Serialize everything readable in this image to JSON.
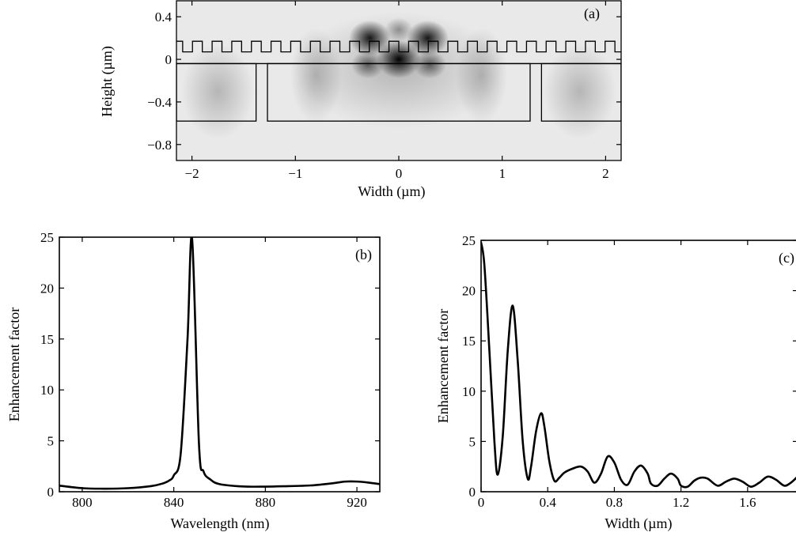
{
  "chart_data": [
    {
      "id": "a",
      "type": "heatmap",
      "panel_label": "(a)",
      "xlabel": "Width (µm)",
      "ylabel": "Height (µm)",
      "xlim": [
        -2.15,
        2.15
      ],
      "ylim": [
        -0.95,
        0.55
      ],
      "xticks": [
        -2,
        -1,
        0,
        1,
        2
      ],
      "xtick_labels": [
        "−2",
        "−1",
        "0",
        "1",
        "2"
      ],
      "yticks": [
        0.4,
        0,
        -0.4,
        -0.8
      ],
      "ytick_labels": [
        "0.4",
        "0",
        "−0.4",
        "−0.8"
      ],
      "colormap": "grayscale",
      "hotspots": [
        {
          "x": 0.0,
          "y": 0.0,
          "intensity": 1.0
        },
        {
          "x": -0.28,
          "y": 0.2,
          "intensity": 0.9
        },
        {
          "x": 0.28,
          "y": 0.2,
          "intensity": 0.9
        },
        {
          "x": -0.3,
          "y": -0.05,
          "intensity": 0.55
        },
        {
          "x": 0.3,
          "y": -0.05,
          "intensity": 0.55
        },
        {
          "x": 0.0,
          "y": 0.28,
          "intensity": 0.35
        }
      ],
      "structure": {
        "grating_top": 0.17,
        "grating_bottom": 0.07,
        "grating_period": 0.19,
        "grating_width": [
          -2.15,
          2.15
        ],
        "slab_top": -0.04,
        "block_bottom": -0.58,
        "blocks": [
          [
            -2.15,
            -1.38
          ],
          [
            -1.27,
            1.27
          ],
          [
            1.38,
            2.15
          ]
        ]
      }
    },
    {
      "id": "b",
      "type": "line",
      "panel_label": "(b)",
      "xlabel": "Wavelength (nm)",
      "ylabel": "Enhancement factor",
      "xlim": [
        790,
        930
      ],
      "ylim": [
        0,
        25
      ],
      "xticks": [
        800,
        840,
        880,
        920
      ],
      "yticks": [
        0,
        5,
        10,
        15,
        20,
        25
      ],
      "x": [
        790,
        800,
        810,
        820,
        830,
        835,
        838,
        840,
        843,
        846,
        848,
        851,
        853,
        856,
        860,
        870,
        880,
        890,
        900,
        910,
        915,
        920,
        925,
        930
      ],
      "y": [
        0.6,
        0.35,
        0.3,
        0.35,
        0.55,
        0.8,
        1.1,
        1.6,
        3.7,
        15.0,
        24.8,
        4.7,
        2.0,
        1.2,
        0.75,
        0.52,
        0.5,
        0.55,
        0.62,
        0.85,
        1.0,
        1.0,
        0.9,
        0.75
      ]
    },
    {
      "id": "c",
      "type": "line",
      "panel_label": "(c)",
      "xlabel": "Width (µm)",
      "ylabel": "Enhancement factor",
      "xlim": [
        0,
        1.9
      ],
      "ylim": [
        0,
        25
      ],
      "xticks": [
        0,
        0.4,
        0.8,
        1.2,
        1.6
      ],
      "yticks": [
        0,
        5,
        10,
        15,
        20,
        25
      ],
      "x": [
        0,
        0.02,
        0.05,
        0.08,
        0.1,
        0.13,
        0.16,
        0.19,
        0.22,
        0.25,
        0.28,
        0.3,
        0.33,
        0.36,
        0.38,
        0.41,
        0.44,
        0.47,
        0.5,
        0.55,
        0.6,
        0.64,
        0.68,
        0.72,
        0.76,
        0.8,
        0.84,
        0.88,
        0.92,
        0.96,
        1.0,
        1.02,
        1.06,
        1.1,
        1.14,
        1.18,
        1.2,
        1.24,
        1.28,
        1.32,
        1.36,
        1.42,
        1.47,
        1.52,
        1.57,
        1.62,
        1.67,
        1.72,
        1.77,
        1.82,
        1.86,
        1.9
      ],
      "y": [
        24.8,
        22.5,
        14.0,
        5.0,
        1.7,
        5.5,
        14.0,
        18.5,
        13.0,
        5.0,
        1.3,
        2.5,
        6.0,
        7.8,
        6.5,
        3.0,
        1.1,
        1.4,
        1.9,
        2.3,
        2.5,
        2.0,
        0.9,
        1.8,
        3.5,
        2.9,
        1.2,
        0.7,
        2.0,
        2.6,
        1.8,
        0.8,
        0.6,
        1.3,
        1.8,
        1.3,
        0.6,
        0.5,
        1.1,
        1.4,
        1.3,
        0.6,
        1.0,
        1.3,
        1.0,
        0.5,
        0.9,
        1.5,
        1.2,
        0.6,
        0.9,
        1.5
      ]
    }
  ]
}
